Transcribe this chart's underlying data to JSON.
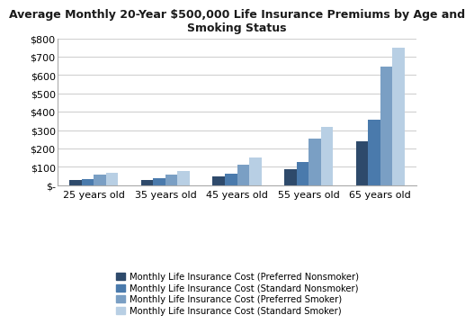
{
  "title": "Average Monthly 20-Year $500,000 Life Insurance Premiums by Age and\nSmoking Status",
  "categories": [
    "25 years old",
    "35 years old",
    "45 years old",
    "55 years old",
    "65 years old"
  ],
  "series": [
    {
      "label": "Monthly Life Insurance Cost (Preferred Nonsmoker)",
      "color": "#2E4A6B",
      "values": [
        28,
        28,
        47,
        88,
        238
      ]
    },
    {
      "label": "Monthly Life Insurance Cost (Standard Nonsmoker)",
      "color": "#4A7AAC",
      "values": [
        35,
        38,
        63,
        128,
        358
      ]
    },
    {
      "label": "Monthly Life Insurance Cost (Preferred Smoker)",
      "color": "#7A9FC4",
      "values": [
        57,
        60,
        113,
        252,
        648
      ]
    },
    {
      "label": "Monthly Life Insurance Cost (Standard Smoker)",
      "color": "#B8CFE4",
      "values": [
        67,
        78,
        150,
        320,
        750
      ]
    }
  ],
  "ylim": [
    0,
    800
  ],
  "yticks": [
    0,
    100,
    200,
    300,
    400,
    500,
    600,
    700,
    800
  ],
  "ytick_labels": [
    "$-",
    "$100",
    "$200",
    "$300",
    "$400",
    "$500",
    "$600",
    "$700",
    "$800"
  ],
  "background_color": "#FFFFFF",
  "plot_bg_color": "#FFFFFF",
  "grid_color": "#D0D0D0",
  "spine_color": "#AAAAAA",
  "legend_fontsize": 7.2,
  "tick_fontsize": 8.0,
  "title_fontsize": 9.0,
  "bar_width": 0.17
}
